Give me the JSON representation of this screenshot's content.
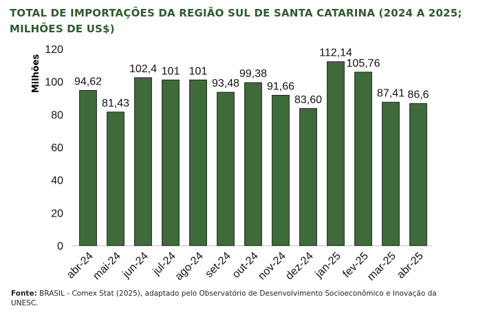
{
  "title": "TOTAL DE IMPORTAÇÕES DA REGIÃO SUL DE SANTA CATARINA (2024 A 2025; MILHÕES DE US$)",
  "source": {
    "label": "Fonte:",
    "text": " BRASIL - Comex Stat (2025), adaptado pelo Observatório de Desenvolvimento Socioeconômico e Inovação da UNESC."
  },
  "colors": {
    "bar": "#3f6b3b",
    "bar_border": "#1f1f1f",
    "title": "#2f5a2c"
  },
  "chart_data": {
    "type": "bar",
    "title": "TOTAL DE IMPORTAÇÕES DA REGIÃO SUL DE SANTA CATARINA (2024 A 2025; MILHÕES DE US$)",
    "xlabel": "",
    "ylabel": "Milhões",
    "ylim": [
      0,
      120
    ],
    "yticks": [
      "0",
      "20",
      "40",
      "60",
      "80",
      "100",
      "120"
    ],
    "grid": false,
    "legend": "none",
    "categories": [
      "abr-24",
      "mai-24",
      "jun-24",
      "jul-24",
      "ago-24",
      "set-24",
      "out-24",
      "nov-24",
      "dez-24",
      "jan-25",
      "fev-25",
      "mar-25",
      "abr-25"
    ],
    "values": [
      94.62,
      81.43,
      102.4,
      101,
      101,
      93.48,
      99.38,
      91.66,
      83.6,
      112.14,
      105.76,
      87.41,
      86.6
    ],
    "data_labels": [
      "94,62",
      "81,43",
      "102,4",
      "101",
      "101",
      "93,48",
      "99,38",
      "91,66",
      "83,60",
      "112,14",
      "105,76",
      "87,41",
      "86,6"
    ]
  }
}
